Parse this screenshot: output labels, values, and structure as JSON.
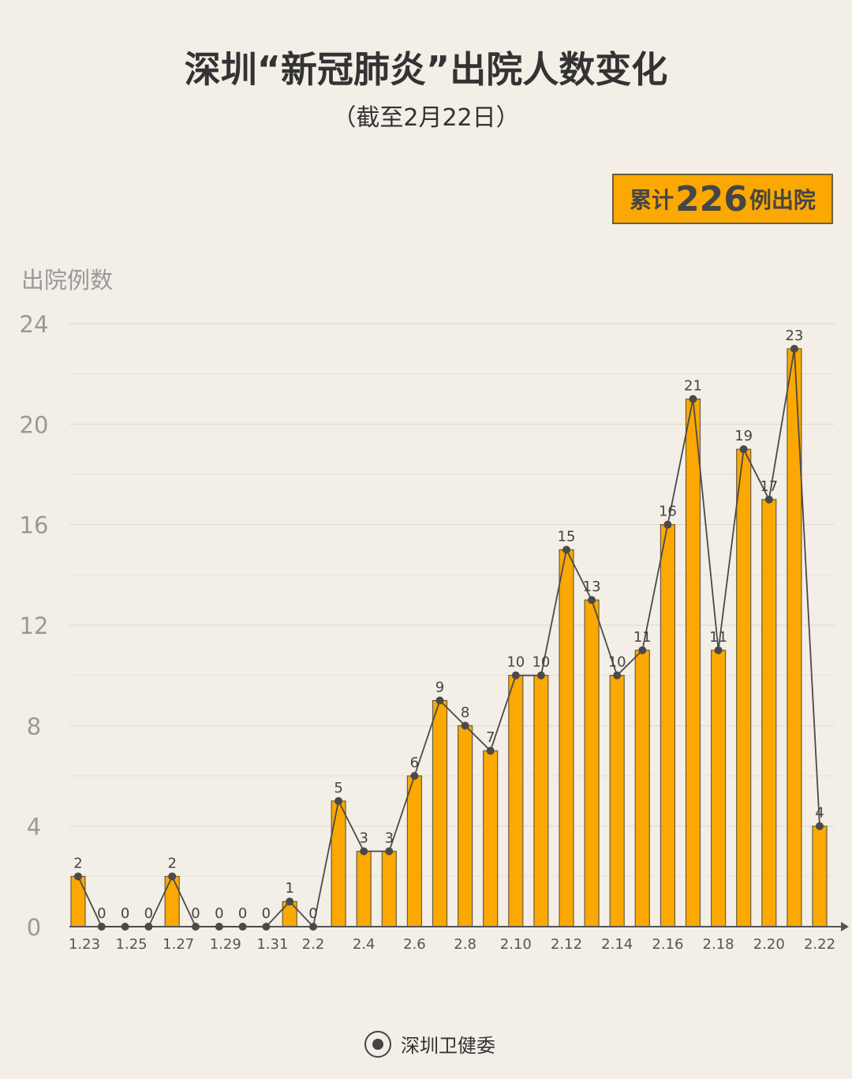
{
  "title": "深圳“新冠肺炎”出院人数变化",
  "subtitle": "（截至2月22日）",
  "badge": {
    "prefix": "累计",
    "number": "226",
    "suffix": "例出院"
  },
  "footer": {
    "org": "深圳卫健委",
    "logo_icon": "health-commission-seal"
  },
  "colors": {
    "bar": "#fba802",
    "bar_border": "#6b5d3f",
    "line": "#4a4a4a",
    "background": "#f3eee6"
  },
  "chart_data": {
    "type": "bar",
    "overlay": "line",
    "title": "深圳“新冠肺炎”出院人数变化",
    "ylabel": "出院例数",
    "xlabel": "",
    "ylim": [
      0,
      24
    ],
    "yticks": [
      "0",
      "4",
      "8",
      "12",
      "16",
      "20",
      "24"
    ],
    "grid": true,
    "categories": [
      "1.23",
      "1.24",
      "1.25",
      "1.26",
      "1.27",
      "1.28",
      "1.29",
      "1.30",
      "1.31",
      "2.1",
      "2.2",
      "2.3",
      "2.4",
      "2.5",
      "2.6",
      "2.7",
      "2.8",
      "2.9",
      "2.10",
      "2.11",
      "2.12",
      "2.13",
      "2.14",
      "2.15",
      "2.16",
      "2.17",
      "2.18",
      "2.19",
      "2.20",
      "2.21",
      "2.22"
    ],
    "xtick_labels": [
      "1.23",
      "1.25",
      "1.27",
      "1.29",
      "1.31",
      "2.2",
      "2.4",
      "2.6",
      "2.8",
      "2.10",
      "2.12",
      "2.14",
      "2.16",
      "2.18",
      "2.20",
      "2.22"
    ],
    "values": [
      2,
      0,
      0,
      0,
      2,
      0,
      0,
      0,
      0,
      1,
      0,
      5,
      3,
      3,
      6,
      9,
      8,
      7,
      10,
      10,
      15,
      13,
      10,
      11,
      16,
      21,
      11,
      19,
      17,
      23,
      4
    ]
  }
}
